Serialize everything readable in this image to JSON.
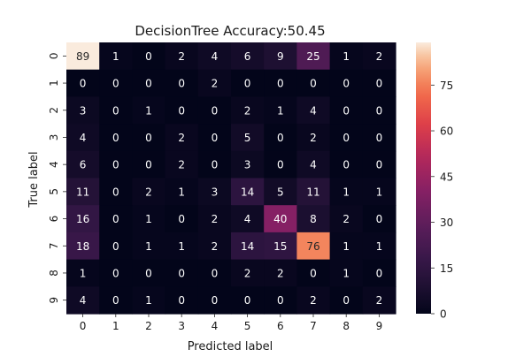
{
  "chart_data": {
    "type": "heatmap",
    "title": "DecisionTree Accuracy:50.45",
    "xlabel": "Predicted label",
    "ylabel": "True label",
    "x_categories": [
      "0",
      "1",
      "2",
      "3",
      "4",
      "5",
      "6",
      "7",
      "8",
      "9"
    ],
    "y_categories": [
      "0",
      "1",
      "2",
      "3",
      "4",
      "5",
      "6",
      "7",
      "8",
      "9"
    ],
    "values": [
      [
        89,
        1,
        0,
        2,
        4,
        6,
        9,
        25,
        1,
        2
      ],
      [
        0,
        0,
        0,
        0,
        2,
        0,
        0,
        0,
        0,
        0
      ],
      [
        3,
        0,
        1,
        0,
        0,
        2,
        1,
        4,
        0,
        0
      ],
      [
        4,
        0,
        0,
        2,
        0,
        5,
        0,
        2,
        0,
        0
      ],
      [
        6,
        0,
        0,
        2,
        0,
        3,
        0,
        4,
        0,
        0
      ],
      [
        11,
        0,
        2,
        1,
        3,
        14,
        5,
        11,
        1,
        1
      ],
      [
        16,
        0,
        1,
        0,
        2,
        4,
        40,
        8,
        2,
        0
      ],
      [
        18,
        0,
        1,
        1,
        2,
        14,
        15,
        76,
        1,
        1
      ],
      [
        1,
        0,
        0,
        0,
        0,
        2,
        2,
        0,
        1,
        0
      ],
      [
        4,
        0,
        1,
        0,
        0,
        0,
        0,
        2,
        0,
        2
      ]
    ],
    "colorbar": {
      "min": 0,
      "max": 89,
      "ticks": [
        "0",
        "15",
        "30",
        "45",
        "60",
        "75"
      ],
      "colormap": "rocket"
    }
  }
}
